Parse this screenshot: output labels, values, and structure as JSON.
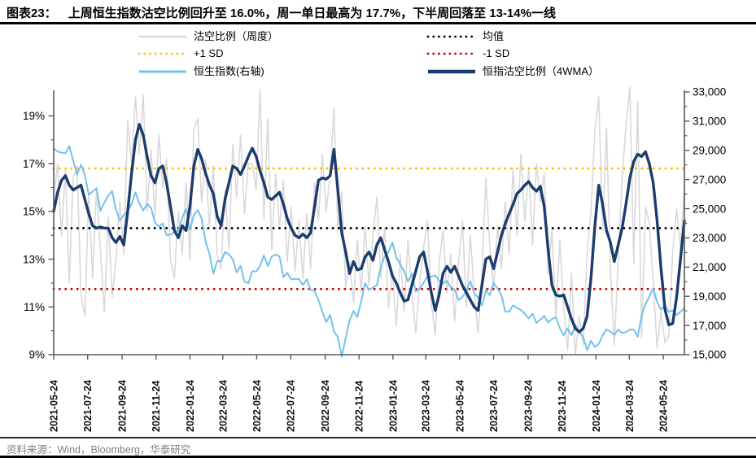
{
  "header": {
    "tag": "图表23：",
    "title": "上周恒生指数沽空比例回升至 16.0%，周一单日最高为 17.7%，下半周回落至 13-14%一线"
  },
  "footer": {
    "source": "资料来源：Wind，Bloomberg，华泰研究"
  },
  "legend": [
    {
      "label": "沽空比例（周度）",
      "swatch": "solid",
      "color": "#D9D9D9",
      "thickness": 2.5
    },
    {
      "label": "均值",
      "swatch": "dots",
      "color": "#000000",
      "thickness": 2.8
    },
    {
      "label": "+1 SD",
      "swatch": "dots",
      "color": "#FFC000",
      "thickness": 2.8
    },
    {
      "label": "-1 SD",
      "swatch": "dots",
      "color": "#C00000",
      "thickness": 2.8
    },
    {
      "label": "恒生指数(右轴)",
      "swatch": "solid",
      "color": "#74C2EB",
      "thickness": 3
    },
    {
      "label": "恒指沽空比例（4WMA）",
      "swatch": "solid",
      "color": "#1B3C6D",
      "thickness": 4.5
    }
  ],
  "chart_data": {
    "type": "line",
    "start_date": "2021-05-24",
    "step_days": 7,
    "x_ticks": [
      "2021-05-24",
      "2021-07-24",
      "2021-09-24",
      "2021-11-24",
      "2022-01-24",
      "2022-03-24",
      "2022-05-24",
      "2022-07-24",
      "2022-09-24",
      "2022-11-24",
      "2023-01-24",
      "2023-03-24",
      "2023-05-24",
      "2023-07-24",
      "2023-09-24",
      "2023-11-24",
      "2024-01-24",
      "2024-03-24",
      "2024-05-24"
    ],
    "left_axis": {
      "min": 9,
      "max": 19,
      "unit": "%",
      "ticks": [
        {
          "v": 9,
          "label": "9%"
        },
        {
          "v": 11,
          "label": "11%"
        },
        {
          "v": 13,
          "label": "13%"
        },
        {
          "v": 15,
          "label": "15%"
        },
        {
          "v": 17,
          "label": "17%"
        },
        {
          "v": 19,
          "label": "19%"
        }
      ],
      "minor_ticks": [
        10,
        12,
        14,
        16,
        18
      ]
    },
    "right_axis": {
      "min": 15000,
      "max": 33000,
      "ticks": [
        {
          "v": 15000,
          "label": "15,000"
        },
        {
          "v": 17000,
          "label": "17,000"
        },
        {
          "v": 19000,
          "label": "19,000"
        },
        {
          "v": 21000,
          "label": "21,000"
        },
        {
          "v": 23000,
          "label": "23,000"
        },
        {
          "v": 25000,
          "label": "25,000"
        },
        {
          "v": 27000,
          "label": "27,000"
        },
        {
          "v": 29000,
          "label": "29,000"
        },
        {
          "v": 31000,
          "label": "31,000"
        },
        {
          "v": 33000,
          "label": "33,000"
        }
      ],
      "minor_ticks": [
        16000,
        18000,
        20000,
        22000,
        24000,
        26000,
        28000,
        30000,
        32000
      ]
    },
    "ref_lines": [
      {
        "name": "均值",
        "value": 14.3,
        "color": "#000000"
      },
      {
        "name": "+1 SD",
        "value": 16.8,
        "color": "#FFC000"
      },
      {
        "name": "-1 SD",
        "value": 11.75,
        "color": "#C00000"
      }
    ],
    "series": [
      {
        "id": "short-ratio-weekly",
        "name": "沽空比例（周度）",
        "axis": "left",
        "color": "#D9D9D9",
        "width": 1.6,
        "values": [
          15.5,
          17.0,
          14.0,
          16.8,
          12.0,
          16.4,
          16.9,
          11.5,
          10.6,
          15.8,
          12.2,
          16.0,
          13.4,
          10.8,
          14.8,
          11.4,
          13.0,
          15.4,
          13.2,
          18.8,
          17.0,
          19.8,
          17.4,
          19.9,
          15.0,
          17.6,
          14.8,
          18.2,
          16.0,
          17.2,
          13.0,
          12.2,
          15.0,
          13.2,
          16.2,
          13.0,
          18.4,
          18.9,
          15.4,
          17.2,
          14.3,
          16.9,
          13.2,
          12.6,
          15.9,
          13.4,
          17.8,
          15.6,
          18.2,
          14.9,
          17.0,
          17.0,
          15.9,
          20.1,
          14.7,
          18.9,
          13.4,
          16.6,
          14.3,
          16.3,
          12.9,
          15.2,
          12.5,
          14.6,
          12.2,
          14.9,
          12.6,
          16.2,
          14.6,
          17.4,
          15.0,
          16.6,
          19.3,
          14.2,
          15.8,
          11.8,
          12.9,
          11.2,
          13.8,
          11.6,
          14.4,
          11.9,
          14.0,
          15.6,
          12.2,
          14.3,
          11.0,
          12.5,
          10.2,
          13.2,
          10.8,
          13.8,
          11.6,
          9.9,
          12.0,
          13.5,
          14.6,
          11.2,
          9.8,
          12.8,
          14.2,
          11.6,
          13.2,
          10.4,
          12.8,
          14.6,
          11.0,
          14.0,
          11.6,
          9.9,
          12.4,
          16.4,
          13.6,
          11.8,
          14.4,
          12.6,
          15.4,
          13.2,
          16.8,
          14.0,
          17.4,
          14.6,
          16.8,
          13.6,
          17.0,
          15.4,
          16.6,
          12.4,
          14.2,
          10.5,
          13.8,
          11.0,
          9.2,
          12.4,
          9.0,
          10.6,
          9.4,
          13.2,
          15.0,
          18.4,
          19.8,
          14.2,
          18.5,
          12.6,
          9.4,
          13.0,
          16.4,
          18.6,
          20.2,
          12.8,
          19.6,
          9.7,
          15.2,
          14.5,
          12.0,
          9.3,
          10.8,
          9.5,
          9.8,
          13.3,
          15.1,
          13.5,
          16.0
        ]
      },
      {
        "id": "hsi",
        "name": "恒生指数(右轴)",
        "axis": "right",
        "color": "#74C2EB",
        "width": 2,
        "values": [
          29124,
          28918,
          28842,
          28801,
          29288,
          28310,
          27344,
          28005,
          27322,
          25961,
          26179,
          26392,
          24850,
          25408,
          25902,
          26206,
          24921,
          24192,
          24576,
          24838,
          25331,
          26126,
          25377,
          24870,
          25328,
          25050,
          24081,
          23767,
          23996,
          23193,
          23224,
          23398,
          23493,
          24383,
          24966,
          23550,
          24573,
          24907,
          24328,
          22767,
          21905,
          20554,
          21412,
          21404,
          22040,
          21872,
          21518,
          20639,
          21089,
          20002,
          19899,
          20717,
          20697,
          21082,
          21806,
          21075,
          21719,
          21860,
          21726,
          20298,
          20609,
          20157,
          20202,
          20176,
          19773,
          20170,
          19452,
          19362,
          18762,
          17933,
          17223,
          17740,
          16587,
          16211,
          14863,
          16161,
          17326,
          17993,
          17574,
          18675,
          19901,
          19451,
          19593,
          19781,
          20992,
          21739,
          22045,
          22689,
          21660,
          21190,
          20720,
          20010,
          20568,
          19320,
          19519,
          19916,
          20400,
          20331,
          20438,
          20075,
          19895,
          20049,
          19627,
          19451,
          18747,
          18950,
          19390,
          20040,
          19218,
          18916,
          18365,
          19413,
          19075,
          19917,
          19539,
          19075,
          17950,
          17956,
          18382,
          18202,
          18057,
          17810,
          17485,
          17813,
          17172,
          17398,
          17664,
          17203,
          17454,
          17559,
          16830,
          16334,
          16792,
          16340,
          17047,
          16535,
          16244,
          15309,
          15952,
          15533,
          15747,
          16340,
          16726,
          16589,
          16353,
          16721,
          16499,
          16541,
          16724,
          16722,
          16224,
          17651,
          18476,
          18964,
          19554,
          18609,
          18080,
          18367,
          17941,
          18028,
          17718,
          17936,
          18180
        ]
      },
      {
        "id": "short-ratio-4wma",
        "name": "恒指沽空比例（4WMA）",
        "axis": "left",
        "color": "#1B3C6D",
        "width": 3.4,
        "values": [
          15.0,
          15.8,
          16.3,
          16.5,
          16.1,
          15.9,
          16.0,
          16.1,
          15.5,
          14.9,
          14.4,
          14.3,
          14.35,
          14.3,
          14.3,
          13.9,
          13.7,
          13.95,
          13.6,
          15.0,
          16.6,
          18.0,
          18.65,
          18.2,
          17.3,
          16.5,
          16.2,
          16.8,
          16.9,
          16.2,
          15.2,
          14.2,
          13.9,
          14.4,
          14.2,
          15.2,
          16.9,
          17.6,
          17.2,
          16.6,
          16.1,
          15.75,
          14.8,
          14.4,
          15.5,
          16.2,
          16.9,
          16.8,
          16.55,
          16.9,
          17.3,
          17.65,
          17.3,
          16.7,
          16.2,
          15.6,
          15.5,
          15.65,
          15.8,
          15.3,
          14.7,
          14.3,
          14.0,
          13.9,
          14.05,
          13.9,
          14.1,
          15.2,
          16.3,
          16.4,
          16.35,
          16.5,
          17.6,
          15.9,
          14.1,
          13.3,
          12.4,
          12.9,
          12.55,
          12.6,
          13.1,
          13.3,
          12.95,
          13.6,
          13.9,
          13.4,
          12.9,
          12.3,
          12.0,
          11.6,
          11.25,
          11.3,
          11.9,
          12.5,
          13.1,
          13.3,
          12.5,
          11.6,
          10.85,
          11.5,
          12.4,
          12.7,
          12.45,
          12.7,
          12.3,
          11.9,
          11.6,
          11.3,
          11.0,
          10.85,
          11.9,
          13.0,
          13.1,
          12.6,
          13.3,
          14.0,
          14.5,
          14.9,
          15.3,
          15.75,
          15.9,
          16.1,
          16.25,
          16.0,
          15.85,
          16.05,
          15.2,
          13.4,
          11.9,
          11.5,
          11.45,
          11.5,
          11.0,
          10.5,
          10.1,
          9.95,
          10.1,
          10.6,
          12.2,
          14.4,
          16.1,
          15.3,
          14.2,
          13.7,
          12.9,
          13.6,
          14.3,
          15.3,
          16.4,
          17.1,
          17.4,
          17.3,
          17.5,
          17.0,
          16.2,
          14.6,
          12.6,
          10.9,
          10.25,
          10.3,
          11.4,
          13.0,
          14.6
        ]
      }
    ]
  }
}
